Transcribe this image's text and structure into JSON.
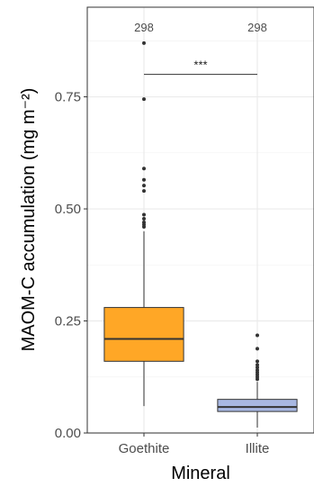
{
  "chart_data": {
    "type": "box",
    "xlabel": "Mineral",
    "ylabel": "MAOM-C accumulation (mg m⁻²)",
    "ylim": [
      0,
      0.95
    ],
    "grid": true,
    "yticks": [
      {
        "value": 0.0,
        "label": "0.00"
      },
      {
        "value": 0.25,
        "label": "0.25"
      },
      {
        "value": 0.5,
        "label": "0.50"
      },
      {
        "value": 0.75,
        "label": "0.75"
      }
    ],
    "categories": [
      "Goethite",
      "Illite"
    ],
    "boxes": [
      {
        "category": "Goethite",
        "n_label": "298",
        "q1": 0.16,
        "median": 0.21,
        "q3": 0.28,
        "whisker_low": 0.06,
        "whisker_high": 0.45,
        "fill": "#FFA726",
        "outliers": [
          0.87,
          0.745,
          0.59,
          0.565,
          0.552,
          0.54,
          0.487,
          0.478,
          0.47,
          0.465,
          0.46
        ]
      },
      {
        "category": "Illite",
        "n_label": "298",
        "q1": 0.048,
        "median": 0.058,
        "q3": 0.075,
        "whisker_low": 0.012,
        "whisker_high": 0.114,
        "fill": "#A8B8E2",
        "outliers": [
          0.218,
          0.188,
          0.16,
          0.152,
          0.146,
          0.14,
          0.135,
          0.13,
          0.125,
          0.12
        ]
      }
    ],
    "significance": {
      "from": "Goethite",
      "to": "Illite",
      "y": 0.8,
      "label": "***"
    }
  }
}
